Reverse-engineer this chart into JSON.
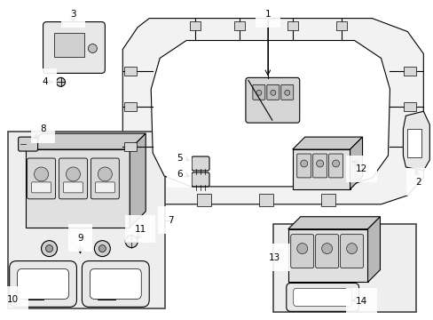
{
  "bg_color": "#ffffff",
  "line_color": "#000000",
  "box_fill": "#eeeeee",
  "part_fill": "#e0e0e0",
  "roof_fill": "#f0f0f0"
}
